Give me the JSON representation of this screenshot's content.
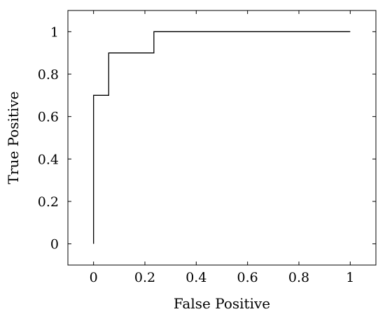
{
  "chart_data": {
    "type": "line",
    "xlabel": "False Positive",
    "ylabel": "True Positive",
    "xlim": [
      -0.1,
      1.1
    ],
    "ylim": [
      -0.1,
      1.1
    ],
    "xticks": [
      "0",
      "0.2",
      "0.4",
      "0.6",
      "0.8",
      "1"
    ],
    "yticks": [
      "0",
      "0.2",
      "0.4",
      "0.6",
      "0.8",
      "1"
    ],
    "grid": false,
    "series": [
      {
        "x": [
          0,
          0,
          0.059,
          0.059,
          0.235,
          0.235,
          1
        ],
        "y": [
          0,
          0.7,
          0.7,
          0.9,
          0.9,
          1,
          1
        ]
      }
    ],
    "colors": {
      "line": "#000000",
      "axes": "#000000",
      "background": "#ffffff"
    }
  }
}
